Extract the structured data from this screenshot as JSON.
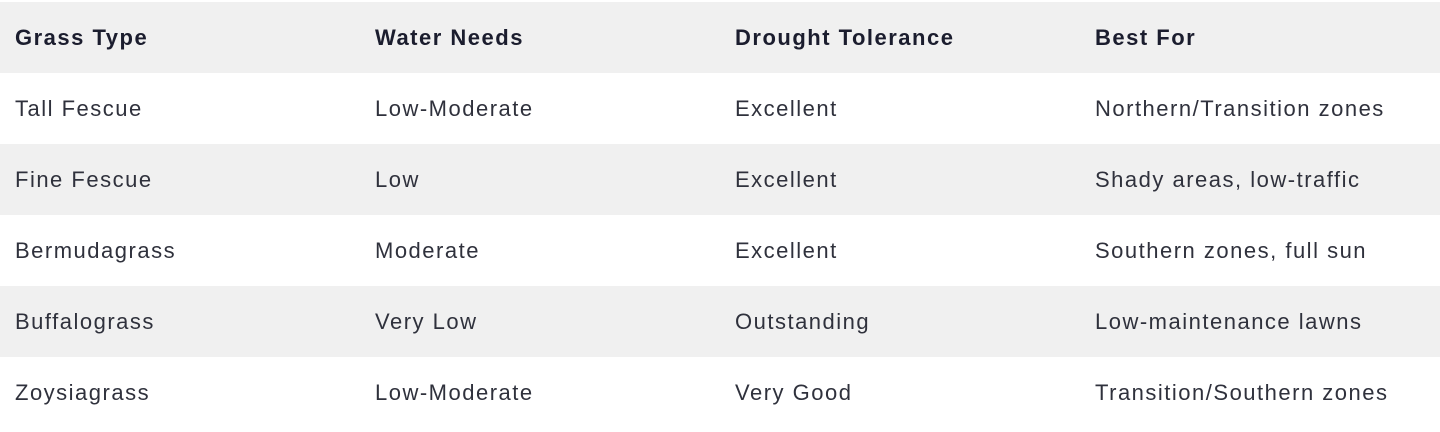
{
  "theme": {
    "background": "#ffffff",
    "stripe_color": "#f0f0f0",
    "header_text_color": "#1b1d2e",
    "body_text_color": "#2f313c"
  },
  "table": {
    "columns": [
      "Grass Type",
      "Water Needs",
      "Drought Tolerance",
      "Best For"
    ],
    "rows": [
      {
        "grass_type": "Tall Fescue",
        "water_needs": "Low-Moderate",
        "drought_tolerance": "Excellent",
        "best_for": "Northern/Transition zones"
      },
      {
        "grass_type": "Fine Fescue",
        "water_needs": "Low",
        "drought_tolerance": "Excellent",
        "best_for": "Shady areas, low-traffic"
      },
      {
        "grass_type": "Bermudagrass",
        "water_needs": "Moderate",
        "drought_tolerance": "Excellent",
        "best_for": "Southern zones, full sun"
      },
      {
        "grass_type": "Buffalograss",
        "water_needs": "Very Low",
        "drought_tolerance": "Outstanding",
        "best_for": "Low-maintenance lawns"
      },
      {
        "grass_type": "Zoysiagrass",
        "water_needs": "Low-Moderate",
        "drought_tolerance": "Very Good",
        "best_for": "Transition/Southern zones"
      }
    ]
  }
}
